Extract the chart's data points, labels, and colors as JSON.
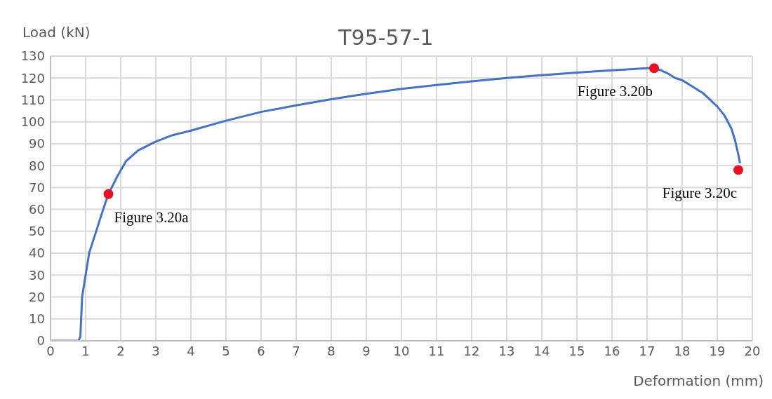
{
  "chart_data": {
    "type": "line",
    "title": "T95-57-1",
    "xlabel": "Deformation (mm)",
    "ylabel": "Load (kN)",
    "xlim": [
      0,
      20
    ],
    "xticks": [
      0,
      1,
      2,
      3,
      4,
      5,
      6,
      7,
      8,
      9,
      10,
      11,
      12,
      13,
      14,
      15,
      16,
      17,
      18,
      19,
      20
    ],
    "ylim": [
      0,
      130
    ],
    "yticks": [
      0,
      10,
      20,
      30,
      40,
      50,
      60,
      70,
      80,
      90,
      100,
      110,
      120,
      130
    ],
    "grid": true,
    "marker": "none",
    "line_style": "solid",
    "series": [
      {
        "type": "line",
        "color": "#4472c4",
        "x": [
          0,
          0.8,
          0.85,
          0.9,
          1.0,
          1.1,
          1.3,
          1.5,
          1.65,
          1.9,
          2.15,
          2.5,
          3,
          3.5,
          4,
          5,
          6,
          7,
          8,
          9,
          10,
          11,
          12,
          13,
          14,
          15,
          16,
          17,
          17.2,
          17.4,
          17.6,
          17.8,
          18,
          18.2,
          18.4,
          18.6,
          18.8,
          19,
          19.2,
          19.4,
          19.5,
          19.6,
          19.65
        ],
        "values": [
          0,
          0,
          2,
          20,
          30,
          40,
          50,
          60,
          67,
          75,
          82,
          87,
          91,
          94,
          96,
          100.5,
          104.5,
          107.5,
          110.3,
          112.8,
          115,
          116.8,
          118.5,
          120,
          121.3,
          122.5,
          123.5,
          124.5,
          124.5,
          123.5,
          122,
          120,
          119,
          117,
          115,
          113,
          110,
          107,
          103,
          97,
          92,
          85,
          81
        ]
      },
      {
        "type": "scatter",
        "color": "#e81123",
        "marker": "circle",
        "x": [
          1.65,
          17.2,
          19.6
        ],
        "values": [
          67,
          124.5,
          78
        ]
      }
    ],
    "annotations": [
      {
        "text": "Figure 3.20a",
        "x": 1.65,
        "y": 67
      },
      {
        "text": "Figure 3.20b",
        "x": 17.2,
        "y": 124.5
      },
      {
        "text": "Figure 3.20c",
        "x": 19.6,
        "y": 78
      }
    ]
  }
}
